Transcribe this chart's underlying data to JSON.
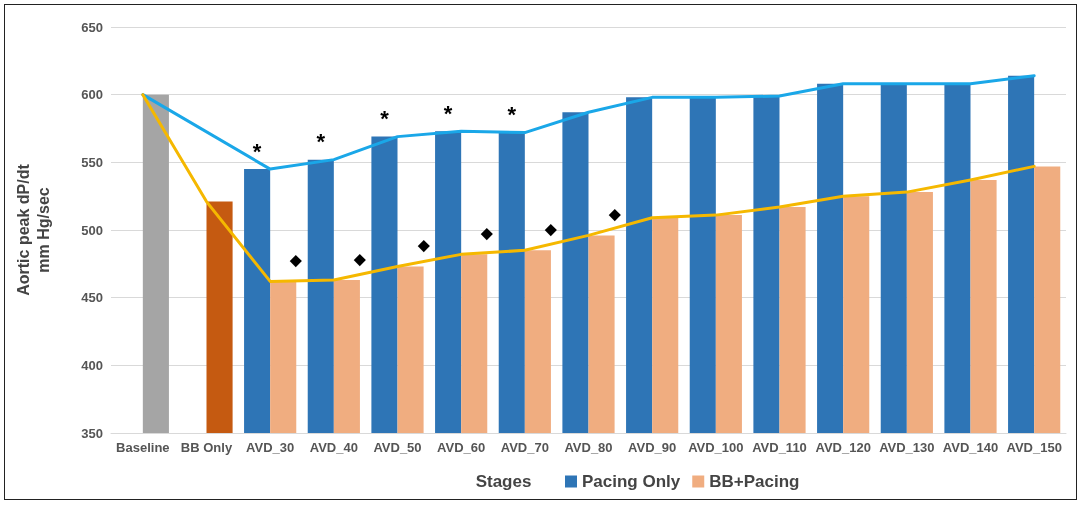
{
  "chart_data": {
    "type": "bar",
    "xlabel": "Stages",
    "ylabel": "Aortic peak dP/dt\nmm Hg/sec",
    "categories": [
      "Baseline",
      "BB Only",
      "AVD_30",
      "AVD_40",
      "AVD_50",
      "AVD_60",
      "AVD_70",
      "AVD_80",
      "AVD_90",
      "AVD_100",
      "AVD_110",
      "AVD_120",
      "AVD_130",
      "AVD_140",
      "AVD_150"
    ],
    "series": [
      {
        "name": "Pacing Only",
        "color": "#2e75b6",
        "values": [
          null,
          null,
          545,
          552,
          569,
          573,
          572,
          587,
          598,
          598,
          599,
          608,
          608,
          608,
          614
        ]
      },
      {
        "name": "BB+Pacing",
        "color": "#f0ad80",
        "colors": [
          "#a5a5a5",
          "#c55a11",
          "#f0ad80",
          "#f0ad80",
          "#f0ad80",
          "#f0ad80",
          "#f0ad80",
          "#f0ad80",
          "#f0ad80",
          "#f0ad80",
          "#f0ad80",
          "#f0ad80",
          "#f0ad80",
          "#f0ad80",
          "#f0ad80"
        ],
        "values": [
          600,
          521,
          462,
          463,
          473,
          482,
          485,
          496,
          509,
          511,
          517,
          525,
          528,
          537,
          547
        ]
      },
      {
        "type": "line",
        "color": "#1aa7e8",
        "values": [
          600,
          null,
          545,
          552,
          569,
          573,
          572,
          587,
          598,
          598,
          599,
          608,
          608,
          608,
          614
        ]
      },
      {
        "type": "line",
        "color": "#f5b800",
        "values": [
          600,
          521,
          462,
          463,
          473,
          482,
          485,
          496,
          509,
          511,
          517,
          525,
          528,
          537,
          547
        ]
      }
    ],
    "annotations": [
      {
        "text": "*",
        "x": "AVD_30",
        "y": 545
      },
      {
        "text": "*",
        "x": "AVD_40",
        "y": 552
      },
      {
        "text": "*",
        "x": "AVD_50",
        "y": 569
      },
      {
        "text": "*",
        "x": "AVD_60",
        "y": 573
      },
      {
        "text": "*",
        "x": "AVD_70",
        "y": 572
      },
      {
        "text": "◆",
        "x": "AVD_30",
        "y": 462
      },
      {
        "text": "◆",
        "x": "AVD_40",
        "y": 463
      },
      {
        "text": "◆",
        "x": "AVD_50",
        "y": 473
      },
      {
        "text": "◆",
        "x": "AVD_60",
        "y": 482
      },
      {
        "text": "◆",
        "x": "AVD_70",
        "y": 485
      },
      {
        "text": "◆",
        "x": "AVD_80",
        "y": 496
      }
    ],
    "ylim": [
      350,
      650
    ],
    "yticks": [
      350,
      400,
      450,
      500,
      550,
      600,
      650
    ],
    "grid": "y",
    "legend": "bottom",
    "marker": "none",
    "line_style": "solid"
  }
}
